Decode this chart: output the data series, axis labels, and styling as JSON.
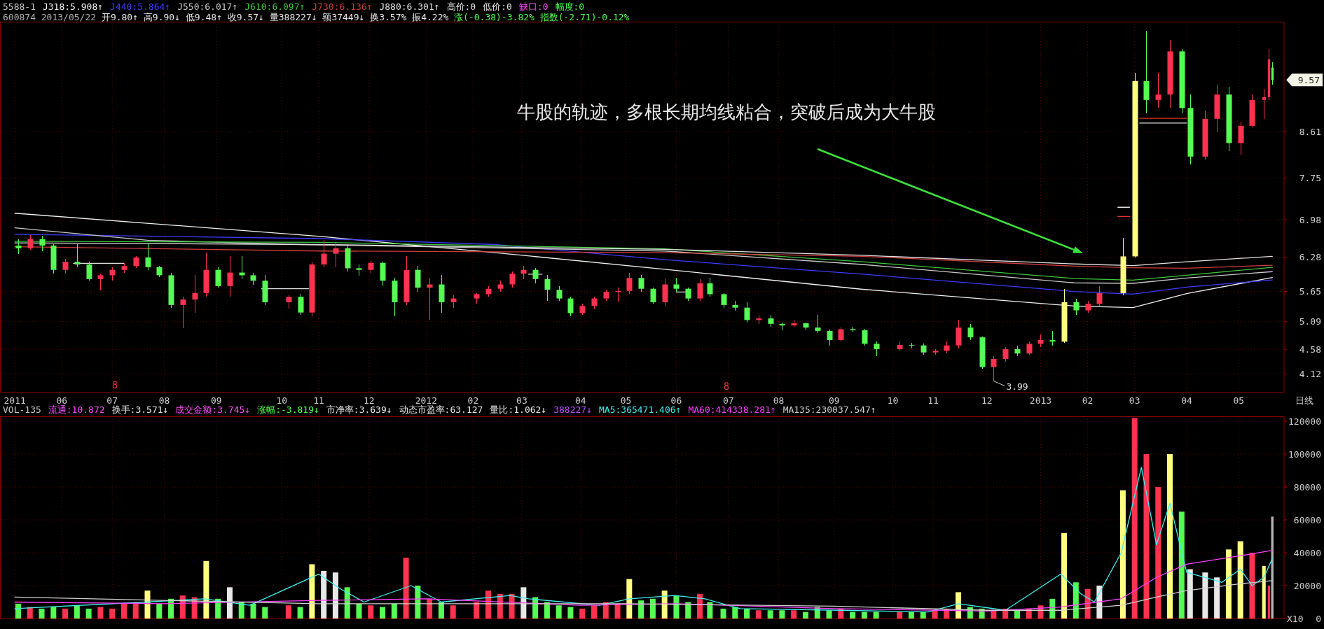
{
  "chart_data": [
    {
      "type": "candlestick",
      "legend_title": "5588-1",
      "legend": "top left",
      "subtitle": "600874 2013/05/22 开9.80↑ 高9.90↓ 低9.48↑ 收9.57↓ 量388227↓ 额37449↓ 换3.57% 振4.22% 涨(-0.38)-3.82% 指数(-2.71)-0.12%",
      "xlabel": "日线",
      "grid": true,
      "xlim": [
        "2011-04-26",
        "2013-05-29"
      ],
      "xticks": [
        {
          "value": "2011-05-04",
          "label": "2011"
        },
        {
          "value": "2011-06-01",
          "label": "06"
        },
        {
          "value": "2011-07-01",
          "label": "07"
        },
        {
          "value": "2011-08-01",
          "label": "08"
        },
        {
          "value": "2011-09-01",
          "label": "09"
        },
        {
          "value": "2011-10-10",
          "label": "10"
        },
        {
          "value": "2011-11-01",
          "label": "11"
        },
        {
          "value": "2011-12-01",
          "label": "12"
        },
        {
          "value": "2012-01-04",
          "label": "2012"
        },
        {
          "value": "2012-02-01",
          "label": "02"
        },
        {
          "value": "2012-03-01",
          "label": "03"
        },
        {
          "value": "2012-04-05",
          "label": "04"
        },
        {
          "value": "2012-05-02",
          "label": "05"
        },
        {
          "value": "2012-06-01",
          "label": "06"
        },
        {
          "value": "2012-07-02",
          "label": "07"
        },
        {
          "value": "2012-08-01",
          "label": "08"
        },
        {
          "value": "2012-09-03",
          "label": "09"
        },
        {
          "value": "2012-10-08",
          "label": "10"
        },
        {
          "value": "2012-11-01",
          "label": "11"
        },
        {
          "value": "2012-12-03",
          "label": "12"
        },
        {
          "value": "2013-01-04",
          "label": "2013"
        },
        {
          "value": "2013-02-01",
          "label": "02"
        },
        {
          "value": "2013-03-01",
          "label": "03"
        },
        {
          "value": "2013-04-01",
          "label": "04"
        },
        {
          "value": "2013-05-02",
          "label": "05"
        }
      ],
      "ylim": [
        3.79,
        10.65
      ],
      "yticks": [
        4.12,
        4.58,
        5.09,
        5.65,
        6.28,
        6.98,
        7.75,
        8.61
      ],
      "x": [
        "2011-05-06",
        "2011-05-13",
        "2011-05-20",
        "2011-05-27",
        "2011-06-03",
        "2011-06-10",
        "2011-06-17",
        "2011-06-24",
        "2011-07-01",
        "2011-07-08",
        "2011-07-15",
        "2011-07-22",
        "2011-07-29",
        "2011-08-05",
        "2011-08-12",
        "2011-08-19",
        "2011-08-26",
        "2011-09-02",
        "2011-09-09",
        "2011-09-16",
        "2011-09-23",
        "2011-09-30",
        "2011-10-14",
        "2011-10-21",
        "2011-10-28",
        "2011-11-04",
        "2011-11-11",
        "2011-11-18",
        "2011-11-25",
        "2011-12-02",
        "2011-12-09",
        "2011-12-16",
        "2011-12-23",
        "2011-12-30",
        "2012-01-06",
        "2012-01-13",
        "2012-01-20",
        "2012-02-03",
        "2012-02-10",
        "2012-02-17",
        "2012-02-24",
        "2012-03-02",
        "2012-03-09",
        "2012-03-16",
        "2012-03-23",
        "2012-03-30",
        "2012-04-06",
        "2012-04-13",
        "2012-04-20",
        "2012-04-27",
        "2012-05-04",
        "2012-05-11",
        "2012-05-18",
        "2012-05-25",
        "2012-06-01",
        "2012-06-08",
        "2012-06-15",
        "2012-06-21",
        "2012-06-29",
        "2012-07-06",
        "2012-07-13",
        "2012-07-20",
        "2012-07-27",
        "2012-08-03",
        "2012-08-10",
        "2012-08-17",
        "2012-08-24",
        "2012-08-31",
        "2012-09-07",
        "2012-09-14",
        "2012-09-21",
        "2012-09-28",
        "2012-10-12",
        "2012-10-19",
        "2012-10-26",
        "2012-11-02",
        "2012-11-09",
        "2012-11-16",
        "2012-11-23",
        "2012-11-30",
        "2012-12-07",
        "2012-12-14",
        "2012-12-21",
        "2012-12-28",
        "2013-01-04",
        "2013-01-11",
        "2013-01-18",
        "2013-01-25",
        "2013-02-01",
        "2013-02-08",
        "2013-02-22",
        "2013-03-01",
        "2013-03-08",
        "2013-03-15",
        "2013-03-22",
        "2013-03-29",
        "2013-04-03",
        "2013-04-12",
        "2013-04-19",
        "2013-04-26",
        "2013-05-03",
        "2013-05-10",
        "2013-05-17",
        "2013-05-20",
        "2013-05-22"
      ],
      "ohlc": [
        [
          6.5,
          6.62,
          6.35,
          6.45
        ],
        [
          6.45,
          6.7,
          6.42,
          6.62
        ],
        [
          6.62,
          6.68,
          6.4,
          6.5
        ],
        [
          6.5,
          6.52,
          5.98,
          6.05
        ],
        [
          6.05,
          6.25,
          5.98,
          6.2
        ],
        [
          6.2,
          6.52,
          6.1,
          6.15
        ],
        [
          6.15,
          6.2,
          5.85,
          5.88
        ],
        [
          5.88,
          5.98,
          5.67,
          5.95
        ],
        [
          5.95,
          6.1,
          5.85,
          6.05
        ],
        [
          6.05,
          6.18,
          6.0,
          6.12
        ],
        [
          6.12,
          6.3,
          6.08,
          6.28
        ],
        [
          6.28,
          6.53,
          6.05,
          6.1
        ],
        [
          6.1,
          6.12,
          5.92,
          5.95
        ],
        [
          5.95,
          6.0,
          5.35,
          5.4
        ],
        [
          5.4,
          5.55,
          4.97,
          5.5
        ],
        [
          5.5,
          5.95,
          5.25,
          5.62
        ],
        [
          5.62,
          6.37,
          5.55,
          6.05
        ],
        [
          6.05,
          6.1,
          5.72,
          5.75
        ],
        [
          5.75,
          6.3,
          5.56,
          6.0
        ],
        [
          6.0,
          6.31,
          5.88,
          5.95
        ],
        [
          5.95,
          6.0,
          5.78,
          5.85
        ],
        [
          5.85,
          5.95,
          5.4,
          5.45
        ],
        [
          5.45,
          5.58,
          5.33,
          5.55
        ],
        [
          5.55,
          5.6,
          5.22,
          5.26
        ],
        [
          5.26,
          6.2,
          5.19,
          6.15
        ],
        [
          6.15,
          6.61,
          6.1,
          6.35
        ],
        [
          6.35,
          6.55,
          6.1,
          6.45
        ],
        [
          6.45,
          6.52,
          6.02,
          6.08
        ],
        [
          6.08,
          6.15,
          5.94,
          6.05
        ],
        [
          6.05,
          6.22,
          5.98,
          6.18
        ],
        [
          6.18,
          6.2,
          5.76,
          5.85
        ],
        [
          5.85,
          5.9,
          5.19,
          5.45
        ],
        [
          5.45,
          6.31,
          5.4,
          6.05
        ],
        [
          6.05,
          6.12,
          5.65,
          5.72
        ],
        [
          5.72,
          5.9,
          5.12,
          5.78
        ],
        [
          5.78,
          5.95,
          5.25,
          5.45
        ],
        [
          5.45,
          5.58,
          5.35,
          5.52
        ],
        [
          5.52,
          5.62,
          5.42,
          5.6
        ],
        [
          5.6,
          5.75,
          5.55,
          5.7
        ],
        [
          5.7,
          5.85,
          5.65,
          5.78
        ],
        [
          5.78,
          6.02,
          5.72,
          5.98
        ],
        [
          5.98,
          6.12,
          5.88,
          6.05
        ],
        [
          6.05,
          6.08,
          5.8,
          5.88
        ],
        [
          5.88,
          5.95,
          5.48,
          5.68
        ],
        [
          5.68,
          5.75,
          5.48,
          5.52
        ],
        [
          5.52,
          5.55,
          5.19,
          5.25
        ],
        [
          5.25,
          5.42,
          5.22,
          5.38
        ],
        [
          5.38,
          5.55,
          5.32,
          5.52
        ],
        [
          5.52,
          5.68,
          5.48,
          5.64
        ],
        [
          5.64,
          5.72,
          5.45,
          5.66
        ],
        [
          5.66,
          5.99,
          5.6,
          5.9
        ],
        [
          5.9,
          5.95,
          5.65,
          5.7
        ],
        [
          5.7,
          5.72,
          5.42,
          5.45
        ],
        [
          5.45,
          5.88,
          5.37,
          5.78
        ],
        [
          5.78,
          5.91,
          5.65,
          5.7
        ],
        [
          5.7,
          5.72,
          5.48,
          5.52
        ],
        [
          5.52,
          5.88,
          5.48,
          5.8
        ],
        [
          5.8,
          5.91,
          5.55,
          5.6
        ],
        [
          5.6,
          5.62,
          5.35,
          5.4
        ],
        [
          5.4,
          5.48,
          5.3,
          5.35
        ],
        [
          5.35,
          5.45,
          5.08,
          5.12
        ],
        [
          5.12,
          5.2,
          5.05,
          5.15
        ],
        [
          5.15,
          5.22,
          5.0,
          5.05
        ],
        [
          5.05,
          5.08,
          4.93,
          5.02
        ],
        [
          5.02,
          5.12,
          4.98,
          5.06
        ],
        [
          5.06,
          5.08,
          4.93,
          4.98
        ],
        [
          4.98,
          5.21,
          4.88,
          4.92
        ],
        [
          4.92,
          4.95,
          4.65,
          4.75
        ],
        [
          4.75,
          4.98,
          4.72,
          4.95
        ],
        [
          4.95,
          5.0,
          4.9,
          4.93
        ],
        [
          4.93,
          4.96,
          4.65,
          4.68
        ],
        [
          4.68,
          4.72,
          4.45,
          4.58
        ],
        [
          4.58,
          4.72,
          4.55,
          4.66
        ],
        [
          4.66,
          4.7,
          4.6,
          4.65
        ],
        [
          4.65,
          4.68,
          4.48,
          4.52
        ],
        [
          4.52,
          4.58,
          4.48,
          4.55
        ],
        [
          4.55,
          4.72,
          4.5,
          4.65
        ],
        [
          4.65,
          5.13,
          4.6,
          4.98
        ],
        [
          4.98,
          5.05,
          4.75,
          4.8
        ],
        [
          4.8,
          4.82,
          4.22,
          4.25
        ],
        [
          4.25,
          4.45,
          3.99,
          4.4
        ],
        [
          4.4,
          4.62,
          4.35,
          4.58
        ],
        [
          4.58,
          4.65,
          4.45,
          4.5
        ],
        [
          4.5,
          4.72,
          4.48,
          4.68
        ],
        [
          4.68,
          4.85,
          4.62,
          4.75
        ],
        [
          4.75,
          4.92,
          4.65,
          4.72
        ],
        [
          4.72,
          5.7,
          4.7,
          5.45
        ],
        [
          5.45,
          5.52,
          5.22,
          5.3
        ],
        [
          5.3,
          5.48,
          5.26,
          5.42
        ],
        [
          5.42,
          5.75,
          5.38,
          5.62
        ],
        [
          5.62,
          6.64,
          5.58,
          6.3
        ],
        [
          6.3,
          9.7,
          6.28,
          9.55
        ],
        [
          9.55,
          10.48,
          8.95,
          9.2
        ],
        [
          9.2,
          9.7,
          9.05,
          9.3
        ],
        [
          9.3,
          10.31,
          9.05,
          10.1
        ],
        [
          10.1,
          10.15,
          8.95,
          9.05
        ],
        [
          9.05,
          9.3,
          8.0,
          8.15
        ],
        [
          8.15,
          9.0,
          8.1,
          8.85
        ],
        [
          8.85,
          9.48,
          8.6,
          9.3
        ],
        [
          9.3,
          9.45,
          8.25,
          8.4
        ],
        [
          8.4,
          8.8,
          8.17,
          8.72
        ],
        [
          8.72,
          9.3,
          8.7,
          9.2
        ],
        [
          9.2,
          9.4,
          8.85,
          9.25
        ],
        [
          9.25,
          10.14,
          9.2,
          9.95
        ],
        [
          9.8,
          9.9,
          9.48,
          9.57
        ]
      ],
      "colors": [
        "#54fc54",
        "#ff3250",
        "#54fc54",
        "#54fc54",
        "#ff3250",
        "#54fc54",
        "#54fc54",
        "#ff3250",
        "#ff3250",
        "#ff3250",
        "#ff3250",
        "#54fc54",
        "#54fc54",
        "#54fc54",
        "#ff3250",
        "#ff3250",
        "#ff3250",
        "#54fc54",
        "#ff3250",
        "#54fc54",
        "#54fc54",
        "#54fc54",
        "#ff3250",
        "#54fc54",
        "#ff3250",
        "#ff3250",
        "#ff3250",
        "#54fc54",
        "#54fc54",
        "#ff3250",
        "#54fc54",
        "#54fc54",
        "#ff3250",
        "#54fc54",
        "#ff3250",
        "#54fc54",
        "#ff3250",
        "#ff3250",
        "#ff3250",
        "#ff3250",
        "#ff3250",
        "#ff3250",
        "#54fc54",
        "#54fc54",
        "#54fc54",
        "#54fc54",
        "#ff3250",
        "#ff3250",
        "#ff3250",
        "#ff3250",
        "#ff3250",
        "#54fc54",
        "#54fc54",
        "#ff3250",
        "#54fc54",
        "#54fc54",
        "#ff3250",
        "#54fc54",
        "#54fc54",
        "#54fc54",
        "#54fc54",
        "#ff3250",
        "#54fc54",
        "#54fc54",
        "#ff3250",
        "#54fc54",
        "#54fc54",
        "#54fc54",
        "#ff3250",
        "#54fc54",
        "#54fc54",
        "#54fc54",
        "#ff3250",
        "#54fc54",
        "#54fc54",
        "#ff3250",
        "#ff3250",
        "#ff3250",
        "#54fc54",
        "#54fc54",
        "#ff3250",
        "#ff3250",
        "#54fc54",
        "#ff3250",
        "#ff3250",
        "#54fc54",
        "#ffff80",
        "#54fc54",
        "#ff3250",
        "#ff3250",
        "#ffff80",
        "#ffff80",
        "#54fc54",
        "#ff3250",
        "#ff3250",
        "#54fc54",
        "#54fc54",
        "#ff3250",
        "#ff3250",
        "#54fc54",
        "#ff3250",
        "#ff3250",
        "#ff3250",
        "#ff3250",
        "#54fc54"
      ],
      "series": [
        {
          "type": "line",
          "name": "J318:5.908↑",
          "color": "#f0f0f0",
          "x": [
            "2011-05-04",
            "2011-11-02",
            "2012-02-14",
            "2012-05-25",
            "2012-09-20",
            "2013-01-24",
            "2013-02-28",
            "2013-04-01",
            "2013-05-22"
          ],
          "values": [
            7.1,
            6.67,
            6.37,
            6.06,
            5.69,
            5.38,
            5.35,
            5.61,
            5.908
          ]
        },
        {
          "type": "line",
          "name": "J440:5.864↑",
          "color": "#3c3cff",
          "x": [
            "2011-05-04",
            "2011-11-02",
            "2012-02-14",
            "2012-05-25",
            "2012-09-20",
            "2013-01-24",
            "2013-02-28",
            "2013-04-01",
            "2013-05-22"
          ],
          "values": [
            6.71,
            6.63,
            6.52,
            6.24,
            5.97,
            5.65,
            5.6,
            5.73,
            5.864
          ]
        },
        {
          "type": "line",
          "name": "J550:6.017↑",
          "color": "#c8c8c8",
          "x": [
            "2011-05-04",
            "2011-07-22",
            "2011-10-21",
            "2012-05-25",
            "2012-09-20",
            "2013-01-24",
            "2013-02-28",
            "2013-04-01",
            "2013-05-22"
          ],
          "values": [
            6.83,
            6.6,
            6.52,
            6.4,
            6.15,
            5.81,
            5.8,
            5.9,
            6.017
          ]
        },
        {
          "type": "line",
          "name": "J610:6.097↑",
          "color": "#3cc83c",
          "x": [
            "2011-05-04",
            "2011-11-02",
            "2012-05-25",
            "2012-09-20",
            "2013-01-24",
            "2013-02-28",
            "2013-04-01",
            "2013-05-22"
          ],
          "values": [
            6.58,
            6.56,
            6.44,
            6.2,
            5.89,
            5.86,
            5.95,
            6.097
          ]
        },
        {
          "type": "line",
          "name": "J730:6.136↑",
          "color": "#d03c3c",
          "x": [
            "2011-05-04",
            "2011-11-02",
            "2012-05-25",
            "2012-09-20",
            "2013-01-24",
            "2013-02-28",
            "2013-04-01",
            "2013-05-22"
          ],
          "values": [
            6.48,
            6.4,
            6.37,
            6.3,
            6.12,
            6.09,
            6.08,
            6.136
          ]
        },
        {
          "type": "line",
          "name": "J880:6.301↑",
          "color": "#e0e0e0",
          "x": [
            "2011-05-04",
            "2011-11-02",
            "2012-05-25",
            "2012-09-20",
            "2013-01-24",
            "2013-02-28",
            "2013-04-01",
            "2013-05-22"
          ],
          "values": [
            6.55,
            6.52,
            6.43,
            6.32,
            6.16,
            6.13,
            6.2,
            6.301
          ]
        },
        {
          "type": "line",
          "color": "#e0e0e0",
          "x": [
            "2011-06-08",
            "2011-07-08"
          ],
          "values": [
            6.17,
            6.17
          ]
        },
        {
          "type": "line",
          "color": "#e0e0e0",
          "x": [
            "2011-09-28",
            "2011-10-26"
          ],
          "values": [
            5.7,
            5.7
          ]
        },
        {
          "type": "line",
          "color": "#e0e0e0",
          "x": [
            "2012-03-05",
            "2012-03-13"
          ],
          "values": [
            5.97,
            5.97
          ]
        },
        {
          "type": "line",
          "color": "#e0e0e0",
          "x": [
            "2012-06-01",
            "2012-06-08"
          ],
          "values": [
            5.64,
            5.64
          ]
        },
        {
          "type": "line",
          "color": "#e03030",
          "x": [
            "2013-03-04",
            "2013-04-01"
          ],
          "values": [
            8.86,
            8.86
          ]
        },
        {
          "type": "line",
          "color": "#e0e0e0",
          "x": [
            "2013-03-04",
            "2013-04-01"
          ],
          "values": [
            8.77,
            8.77
          ]
        },
        {
          "type": "line",
          "color": "#e0e0e0",
          "x": [
            "2013-02-19",
            "2013-02-26"
          ],
          "values": [
            7.21,
            7.21
          ]
        },
        {
          "type": "line",
          "color": "#e03030",
          "x": [
            "2013-02-19",
            "2013-02-26"
          ],
          "values": [
            7.04,
            7.04
          ]
        }
      ],
      "annotations": [
        "高价:0",
        "低价:0",
        "缺口:0",
        "幅度:0",
        "牛股的轨迹，多根长期均线粘合，突破后成为大牛股",
        {
          "text": "3.99",
          "x": "2012-12-07",
          "y": 3.99
        },
        {
          "text": "9.57",
          "x": "2013-05-22",
          "y": 9.57
        }
      ]
    },
    {
      "type": "bar",
      "legend_title": "VOL-135",
      "legend": "top",
      "ylabel": "X10",
      "tick_labels": "y",
      "grid": true,
      "xlim": [
        "2011-04-26",
        "2013-05-29"
      ],
      "xticks": [
        {
          "value": "2011-05-04",
          "label": null
        },
        {
          "value": "2011-06-01",
          "label": null
        },
        {
          "value": "2011-07-01",
          "label": null
        },
        {
          "value": "2011-08-01",
          "label": null
        },
        {
          "value": "2011-09-01",
          "label": null
        },
        {
          "value": "2011-10-10",
          "label": null
        },
        {
          "value": "2011-11-01",
          "label": null
        },
        {
          "value": "2011-12-01",
          "label": null
        },
        {
          "value": "2012-01-04",
          "label": null
        },
        {
          "value": "2012-02-01",
          "label": null
        },
        {
          "value": "2012-03-01",
          "label": null
        },
        {
          "value": "2012-04-05",
          "label": null
        },
        {
          "value": "2012-05-02",
          "label": null
        },
        {
          "value": "2012-06-01",
          "label": null
        },
        {
          "value": "2012-07-02",
          "label": null
        },
        {
          "value": "2012-08-01",
          "label": null
        },
        {
          "value": "2012-09-03",
          "label": null
        },
        {
          "value": "2012-10-08",
          "label": null
        },
        {
          "value": "2012-11-01",
          "label": null
        },
        {
          "value": "2012-12-03",
          "label": null
        },
        {
          "value": "2013-01-04",
          "label": null
        },
        {
          "value": "2013-02-01",
          "label": null
        },
        {
          "value": "2013-03-01",
          "label": null
        },
        {
          "value": "2013-04-01",
          "label": null
        },
        {
          "value": "2013-05-02",
          "label": null
        }
      ],
      "ylim": [
        0,
        123000
      ],
      "yticks": [
        0,
        20000,
        40000,
        60000,
        80000,
        100000,
        120000
      ],
      "x": [
        "2011-05-06",
        "2011-05-13",
        "2011-05-20",
        "2011-05-27",
        "2011-06-03",
        "2011-06-10",
        "2011-06-17",
        "2011-06-24",
        "2011-07-01",
        "2011-07-08",
        "2011-07-15",
        "2011-07-22",
        "2011-07-29",
        "2011-08-05",
        "2011-08-12",
        "2011-08-19",
        "2011-08-26",
        "2011-09-02",
        "2011-09-09",
        "2011-09-16",
        "2011-09-23",
        "2011-09-30",
        "2011-10-14",
        "2011-10-21",
        "2011-10-28",
        "2011-11-04",
        "2011-11-11",
        "2011-11-18",
        "2011-11-25",
        "2011-12-02",
        "2011-12-09",
        "2011-12-16",
        "2011-12-23",
        "2011-12-30",
        "2012-01-06",
        "2012-01-13",
        "2012-01-20",
        "2012-02-03",
        "2012-02-10",
        "2012-02-17",
        "2012-02-24",
        "2012-03-02",
        "2012-03-09",
        "2012-03-16",
        "2012-03-23",
        "2012-03-30",
        "2012-04-06",
        "2012-04-13",
        "2012-04-20",
        "2012-04-27",
        "2012-05-04",
        "2012-05-11",
        "2012-05-18",
        "2012-05-25",
        "2012-06-01",
        "2012-06-08",
        "2012-06-15",
        "2012-06-21",
        "2012-06-29",
        "2012-07-06",
        "2012-07-13",
        "2012-07-20",
        "2012-07-27",
        "2012-08-03",
        "2012-08-10",
        "2012-08-17",
        "2012-08-24",
        "2012-08-31",
        "2012-09-07",
        "2012-09-14",
        "2012-09-21",
        "2012-09-28",
        "2012-10-12",
        "2012-10-19",
        "2012-10-26",
        "2012-11-02",
        "2012-11-09",
        "2012-11-16",
        "2012-11-23",
        "2012-11-30",
        "2012-12-07",
        "2012-12-14",
        "2012-12-21",
        "2012-12-28",
        "2013-01-04",
        "2013-01-11",
        "2013-01-18",
        "2013-01-25",
        "2013-02-01",
        "2013-02-08",
        "2013-02-22",
        "2013-03-01",
        "2013-03-08",
        "2013-03-15",
        "2013-03-22",
        "2013-03-29",
        "2013-04-03",
        "2013-04-12",
        "2013-04-19",
        "2013-04-26",
        "2013-05-03",
        "2013-05-10",
        "2013-05-17",
        "2013-05-20",
        "2013-05-22"
      ],
      "series": [
        {
          "type": "bar",
          "values": [
            9000,
            7000,
            6000,
            7000,
            6000,
            8000,
            6000,
            7000,
            6000,
            9000,
            10000,
            17000,
            9000,
            12000,
            14000,
            13000,
            35000,
            12000,
            19000,
            10000,
            9000,
            7000,
            8000,
            7000,
            33000,
            29000,
            28000,
            19000,
            9000,
            8000,
            7000,
            9000,
            37000,
            20000,
            12000,
            10000,
            8000,
            10000,
            17000,
            15000,
            15000,
            19000,
            13000,
            10000,
            8000,
            7000,
            6000,
            8000,
            10000,
            9000,
            24000,
            11000,
            12000,
            17000,
            14000,
            10000,
            15000,
            10000,
            6000,
            7000,
            6000,
            5000,
            5000,
            5000,
            5000,
            4000,
            7000,
            5000,
            6000,
            4000,
            4000,
            4000,
            4000,
            4000,
            4000,
            5000,
            6000,
            16000,
            7000,
            6000,
            5000,
            6000,
            5000,
            6000,
            8000,
            12000,
            52000,
            22000,
            18000,
            20000,
            78000,
            122000,
            100000,
            80000,
            100000,
            65000,
            30000,
            28000,
            25000,
            42000,
            47000,
            40000,
            32000,
            20000,
            62000
          ],
          "colors": [
            "#54fc54",
            "#ff3250",
            "#54fc54",
            "#54fc54",
            "#ff3250",
            "#54fc54",
            "#54fc54",
            "#ff3250",
            "#ff3250",
            "#ff3250",
            "#ff3250",
            "#ffff80",
            "#54fc54",
            "#54fc54",
            "#ff3250",
            "#ff3250",
            "#ffff80",
            "#54fc54",
            "#e8e8e8",
            "#54fc54",
            "#54fc54",
            "#54fc54",
            "#ff3250",
            "#54fc54",
            "#ffff80",
            "#e8e8e8",
            "#e8e8e8",
            "#54fc54",
            "#54fc54",
            "#ff3250",
            "#54fc54",
            "#54fc54",
            "#ff3250",
            "#54fc54",
            "#ff3250",
            "#54fc54",
            "#ff3250",
            "#ff3250",
            "#ff3250",
            "#ff3250",
            "#ff3250",
            "#e8e8e8",
            "#54fc54",
            "#54fc54",
            "#54fc54",
            "#54fc54",
            "#ff3250",
            "#ff3250",
            "#ff3250",
            "#ff3250",
            "#ffff80",
            "#54fc54",
            "#54fc54",
            "#ffff80",
            "#54fc54",
            "#54fc54",
            "#ff3250",
            "#54fc54",
            "#54fc54",
            "#54fc54",
            "#54fc54",
            "#ff3250",
            "#54fc54",
            "#54fc54",
            "#ff3250",
            "#54fc54",
            "#54fc54",
            "#54fc54",
            "#ff3250",
            "#54fc54",
            "#54fc54",
            "#54fc54",
            "#ff3250",
            "#54fc54",
            "#54fc54",
            "#ff3250",
            "#ff3250",
            "#ffff80",
            "#54fc54",
            "#54fc54",
            "#ff3250",
            "#ff3250",
            "#54fc54",
            "#ff3250",
            "#ff3250",
            "#54fc54",
            "#ffff80",
            "#54fc54",
            "#ff3250",
            "#e8e8e8",
            "#ffff80",
            "#ff3250",
            "#ff3250",
            "#ff3250",
            "#ffff80",
            "#54fc54",
            "#e8e8e8",
            "#e8e8e8",
            "#e8e8e8",
            "#ffff80",
            "#ffff80",
            "#ff3250",
            "#ffff80",
            "#ff3250",
            "#b4b4b4"
          ]
        },
        {
          "type": "line",
          "name": "MA5:365471.406↑",
          "color": "#40f0f0",
          "x": [
            "2011-05-04",
            "2011-07-21",
            "2011-08-25",
            "2011-09-21",
            "2011-11-01",
            "2011-11-14",
            "2011-11-28",
            "2011-12-26",
            "2012-01-13",
            "2012-02-23",
            "2012-03-05",
            "2012-04-16",
            "2012-05-04",
            "2012-05-31",
            "2012-06-18",
            "2012-07-09",
            "2012-09-07",
            "2012-10-29",
            "2012-11-16",
            "2012-12-14",
            "2013-01-16",
            "2013-01-28",
            "2013-02-05",
            "2013-02-21",
            "2013-03-05",
            "2013-03-14",
            "2013-03-22",
            "2013-04-01",
            "2013-04-12",
            "2013-04-22",
            "2013-05-03",
            "2013-05-10",
            "2013-05-17",
            "2013-05-22"
          ],
          "values": [
            6000,
            10000,
            12000,
            8000,
            27000,
            18000,
            10000,
            20000,
            10000,
            14000,
            12000,
            8000,
            12000,
            14000,
            12000,
            6000,
            5000,
            4000,
            9000,
            5000,
            27000,
            15000,
            10000,
            40000,
            92000,
            45000,
            70000,
            28000,
            25000,
            22000,
            30000,
            20000,
            25000,
            36500
          ]
        },
        {
          "type": "line",
          "name": "MA60:414338.281↑",
          "color": "#ff40ff",
          "x": [
            "2011-05-04",
            "2011-08-01",
            "2011-11-01",
            "2012-01-04",
            "2012-04-05",
            "2012-06-01",
            "2012-09-03",
            "2012-12-03",
            "2013-01-16",
            "2013-02-21",
            "2013-03-14",
            "2013-04-01",
            "2013-05-02",
            "2013-05-22"
          ],
          "values": [
            10000,
            9000,
            11000,
            12000,
            8000,
            9000,
            6000,
            4500,
            7000,
            12000,
            25000,
            33000,
            38000,
            41400
          ]
        },
        {
          "type": "line",
          "name": "MA135:230037.547↑",
          "color": "#d0d0d0",
          "x": [
            "2011-05-04",
            "2011-11-01",
            "2012-05-02",
            "2012-09-03",
            "2012-12-03",
            "2013-01-16",
            "2013-02-21",
            "2013-03-14",
            "2013-04-01",
            "2013-05-02",
            "2013-05-22"
          ],
          "values": [
            13000,
            9000,
            9000,
            7500,
            5000,
            5000,
            8000,
            13000,
            17000,
            21000,
            23000
          ]
        }
      ],
      "annotations": [
        "流通:10.872",
        "换手:3.571↓",
        "成交金额:3.745↓",
        "涨幅:-3.819↓",
        "市净率:3.639↓",
        "动态市盈率:63.127",
        "量比:1.062↓",
        "388227↓"
      ]
    }
  ]
}
